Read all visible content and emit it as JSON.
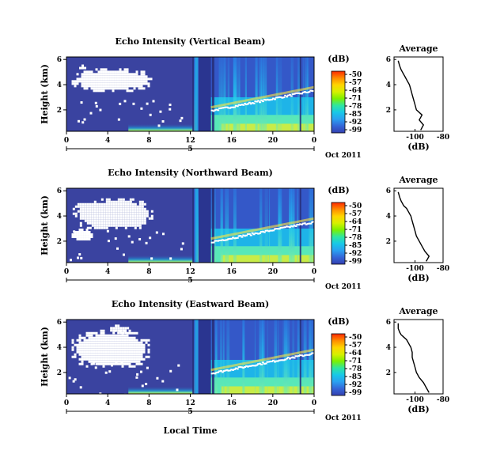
{
  "figure": {
    "xlabel": "Local Time",
    "date_label": "Oct 2011",
    "day_label": "5",
    "colorbar_unit": "(dB)",
    "average_xlabel": "(dB)"
  },
  "colorbar": {
    "ticks": [
      -50,
      -57,
      -64,
      -71,
      -78,
      -85,
      -92,
      -99
    ],
    "colors": [
      "#ff2a00",
      "#ff8c00",
      "#ffd400",
      "#d8f000",
      "#7cf000",
      "#2ee6a0",
      "#18c8e8",
      "#2aa0f0",
      "#3466d8",
      "#3440b0"
    ]
  },
  "chart_data": [
    {
      "type": "heatmap",
      "title": "Echo Intensity (Vertical Beam)",
      "ylabel": "Height (km)",
      "x_ticks": [
        "0",
        "4",
        "8",
        "12",
        "16",
        "20",
        "0"
      ],
      "y_ticks": [
        "2",
        "4",
        "6"
      ],
      "xlim": [
        0,
        24
      ],
      "ylim": [
        0.3,
        6.2
      ],
      "colorbar_range_dB": [
        -99,
        -50
      ],
      "zero_gap_hours": [
        12.8,
        14.0
      ],
      "bright_layer_height_km": [
        2.0,
        3.6
      ],
      "no_data_blobs": [
        {
          "x": [
            0.5,
            8.2
          ],
          "y": [
            3.6,
            5.3
          ]
        },
        {
          "x": [
            1.0,
            2.0
          ],
          "y": [
            5.3,
            5.6
          ]
        }
      ]
    },
    {
      "type": "line",
      "title": "Average",
      "xlabel": "(dB)",
      "xlim": [
        -115,
        -80
      ],
      "ylim": [
        0.3,
        6.2
      ],
      "x_ticks": [
        "-100",
        "-80"
      ],
      "y_ticks": [
        "2",
        "4",
        "6"
      ],
      "series": [
        {
          "x": [
            -96,
            -94,
            -97,
            -95,
            -99,
            -100,
            -101,
            -102,
            -103,
            -104,
            -106,
            -107,
            -108,
            -109,
            -110,
            -111,
            -112
          ],
          "y": [
            0.4,
            0.8,
            1.2,
            1.6,
            2.0,
            2.4,
            2.8,
            3.2,
            3.6,
            4.0,
            4.4,
            4.6,
            4.8,
            5.0,
            5.2,
            5.5,
            5.9
          ]
        }
      ]
    },
    {
      "type": "heatmap",
      "title": "Echo Intensity (Northward Beam)",
      "ylabel": "Height (km)",
      "x_ticks": [
        "0",
        "4",
        "8",
        "12",
        "16",
        "20",
        "0"
      ],
      "y_ticks": [
        "2",
        "4",
        "6"
      ],
      "xlim": [
        0,
        24
      ],
      "ylim": [
        0.3,
        6.2
      ],
      "colorbar_range_dB": [
        -99,
        -50
      ],
      "zero_gap_hours": [
        12.8,
        14.0
      ],
      "bright_layer_height_km": [
        2.0,
        3.6
      ],
      "no_data_blobs": [
        {
          "x": [
            0.6,
            8.4
          ],
          "y": [
            3.0,
            5.4
          ]
        },
        {
          "x": [
            0.5,
            2.5
          ],
          "y": [
            2.1,
            3.0
          ]
        }
      ]
    },
    {
      "type": "line",
      "title": "Average",
      "xlabel": "(dB)",
      "xlim": [
        -115,
        -80
      ],
      "ylim": [
        0.3,
        6.2
      ],
      "x_ticks": [
        "-100",
        "-80"
      ],
      "y_ticks": [
        "2",
        "4",
        "6"
      ],
      "series": [
        {
          "x": [
            -92,
            -90,
            -93,
            -95,
            -97,
            -99,
            -100,
            -101,
            -102,
            -103,
            -105,
            -106,
            -108,
            -109,
            -110,
            -111,
            -112
          ],
          "y": [
            0.4,
            0.8,
            1.2,
            1.6,
            2.0,
            2.4,
            2.8,
            3.2,
            3.6,
            4.0,
            4.4,
            4.6,
            4.8,
            5.0,
            5.2,
            5.5,
            5.9
          ]
        }
      ]
    },
    {
      "type": "heatmap",
      "title": "Echo Intensity (Eastward Beam)",
      "ylabel": "Height (km)",
      "x_ticks": [
        "0",
        "4",
        "8",
        "12",
        "16",
        "20",
        "0"
      ],
      "y_ticks": [
        "2",
        "4",
        "6"
      ],
      "xlim": [
        0,
        24
      ],
      "ylim": [
        0.3,
        6.2
      ],
      "colorbar_range_dB": [
        -99,
        -50
      ],
      "zero_gap_hours": [
        12.8,
        14.0
      ],
      "bright_layer_height_km": [
        2.0,
        3.6
      ],
      "no_data_blobs": [
        {
          "x": [
            0.5,
            8.0
          ],
          "y": [
            2.4,
            5.4
          ]
        },
        {
          "x": [
            4.0,
            6.0
          ],
          "y": [
            5.2,
            5.8
          ]
        }
      ]
    },
    {
      "type": "line",
      "title": "Average",
      "xlabel": "(dB)",
      "xlim": [
        -115,
        -80
      ],
      "ylim": [
        0.3,
        6.2
      ],
      "x_ticks": [
        "-100",
        "-80"
      ],
      "y_ticks": [
        "2",
        "4",
        "6"
      ],
      "series": [
        {
          "x": [
            -90,
            -92,
            -94,
            -97,
            -99,
            -100,
            -101,
            -102,
            -102,
            -103,
            -105,
            -106,
            -108,
            -110,
            -111,
            -112,
            -112
          ],
          "y": [
            0.4,
            0.8,
            1.2,
            1.6,
            2.0,
            2.4,
            2.8,
            3.2,
            3.6,
            4.0,
            4.4,
            4.6,
            4.8,
            5.0,
            5.2,
            5.5,
            5.9
          ]
        }
      ]
    }
  ]
}
